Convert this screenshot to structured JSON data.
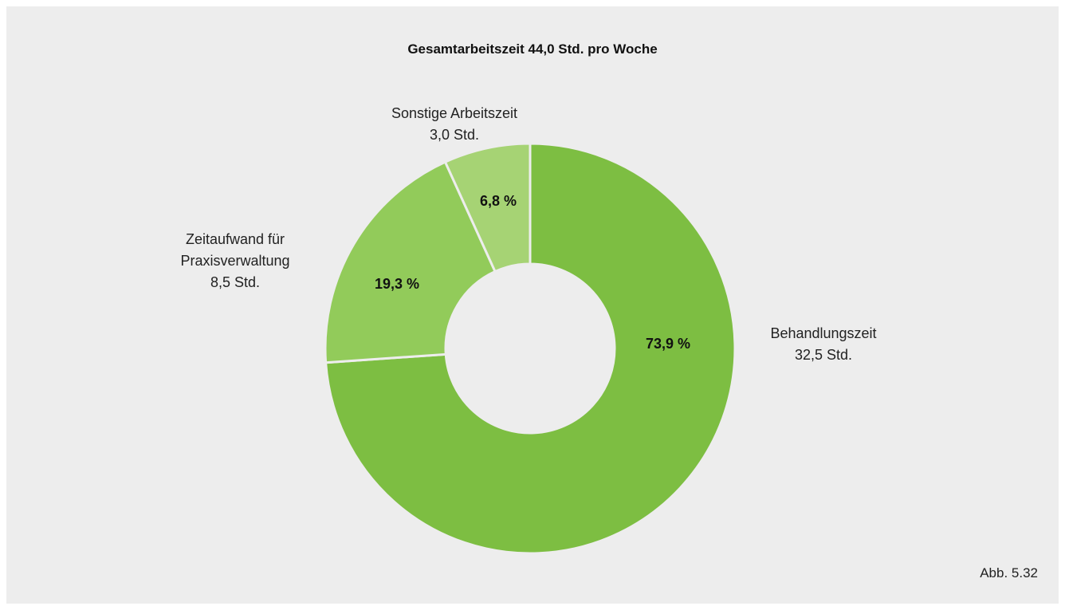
{
  "chart_data": {
    "type": "donut",
    "title": "Gesamtarbeitszeit 44,0 Std. pro Woche",
    "categories": [
      "Behandlungszeit",
      "Zeitaufwand für Praxisverwaltung",
      "Sonstige Arbeitszeit"
    ],
    "values": [
      73.9,
      19.3,
      6.8
    ],
    "value_labels": [
      "73,9 %",
      "19,3 %",
      "6,8 %"
    ],
    "hours": [
      32.5,
      8.5,
      3.0
    ],
    "hour_labels": [
      "32,5 Std.",
      "8,5 Std.",
      "3,0 Std."
    ],
    "colors": [
      "#7dbe42",
      "#92cb5a",
      "#a6d374"
    ],
    "note": "Abb. 5.32"
  }
}
